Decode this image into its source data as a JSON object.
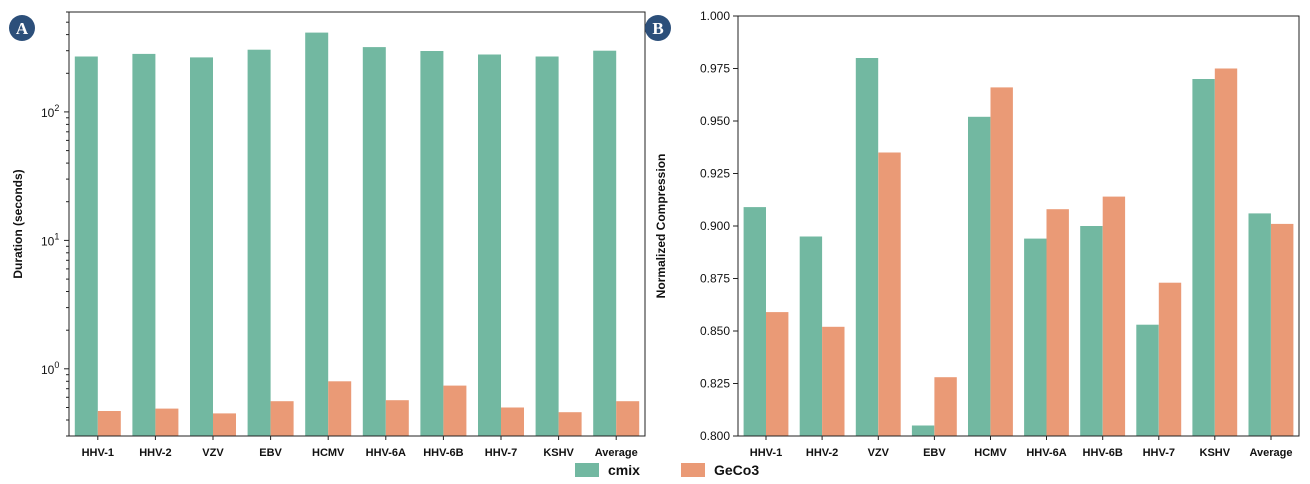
{
  "badges": {
    "a": "A",
    "b": "B"
  },
  "colors": {
    "cmix": "#72b8a1",
    "geco3": "#ea9a76",
    "badge": "#2c4f7a"
  },
  "legend": {
    "cmix": "cmix",
    "geco3": "GeCo3"
  },
  "chart_data": [
    {
      "type": "bar",
      "scale": "log",
      "ylabel": "Duration (seconds)",
      "ylim": [
        0.3,
        600
      ],
      "yticks": [
        {
          "value": 1,
          "base": "10",
          "exp": "0"
        },
        {
          "value": 10,
          "base": "10",
          "exp": "1"
        },
        {
          "value": 100,
          "base": "10",
          "exp": "2"
        }
      ],
      "categories": [
        "HHV-1",
        "HHV-2",
        "VZV",
        "EBV",
        "HCMV",
        "HHV-6A",
        "HHV-6B",
        "HHV-7",
        "KSHV",
        "Average"
      ],
      "series": [
        {
          "name": "cmix",
          "values": [
            270,
            283,
            266,
            305,
            415,
            320,
            298,
            280,
            270,
            300
          ]
        },
        {
          "name": "GeCo3",
          "values": [
            0.47,
            0.49,
            0.45,
            0.56,
            0.8,
            0.57,
            0.74,
            0.5,
            0.46,
            0.56
          ]
        }
      ],
      "legend_position": "bottom-center"
    },
    {
      "type": "bar",
      "scale": "linear",
      "ylabel": "Normalized Compression",
      "ylim": [
        0.8,
        1.0
      ],
      "yticks": [
        "0.800",
        "0.825",
        "0.850",
        "0.875",
        "0.900",
        "0.925",
        "0.950",
        "0.975",
        "1.000"
      ],
      "categories": [
        "HHV-1",
        "HHV-2",
        "VZV",
        "EBV",
        "HCMV",
        "HHV-6A",
        "HHV-6B",
        "HHV-7",
        "KSHV",
        "Average"
      ],
      "series": [
        {
          "name": "cmix",
          "values": [
            0.909,
            0.895,
            0.98,
            0.805,
            0.952,
            0.894,
            0.9,
            0.853,
            0.97,
            0.906
          ]
        },
        {
          "name": "GeCo3",
          "values": [
            0.859,
            0.852,
            0.935,
            0.828,
            0.966,
            0.908,
            0.914,
            0.873,
            0.975,
            0.901
          ]
        }
      ],
      "legend_position": "bottom-center"
    }
  ]
}
